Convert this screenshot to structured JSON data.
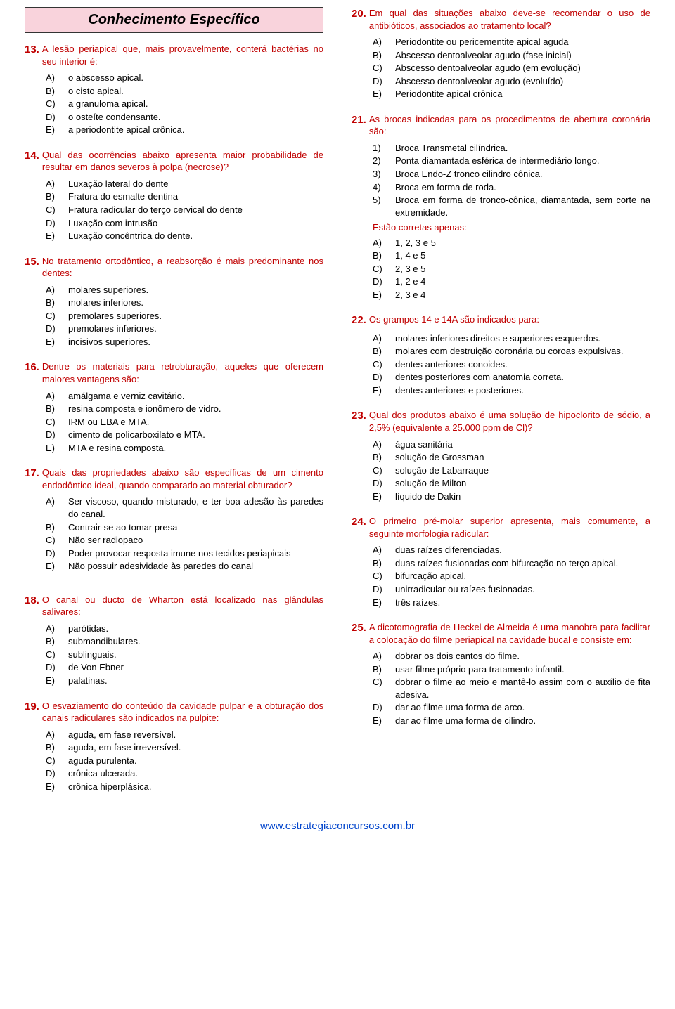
{
  "colors": {
    "question_stem": "#c00000",
    "header_bg": "#f9d3dc",
    "footer_link": "#0044cc"
  },
  "header": {
    "title": "Conhecimento Específico"
  },
  "footer": {
    "url": "www.estrategiaconcursos.com.br"
  },
  "left": [
    {
      "num": "13.",
      "text": "A lesão periapical que, mais provavelmente, conterá bactérias no seu interior é:",
      "opts": [
        {
          "l": "A)",
          "t": "o abscesso apical."
        },
        {
          "l": "B)",
          "t": "o cisto apical."
        },
        {
          "l": "C)",
          "t": "a granuloma apical."
        },
        {
          "l": "D)",
          "t": "o osteíte condensante."
        },
        {
          "l": "E)",
          "t": "a periodontite apical crônica."
        }
      ]
    },
    {
      "num": "14.",
      "text": "Qual das ocorrências abaixo apresenta maior probabilidade de resultar em danos severos à polpa (necrose)?",
      "opts": [
        {
          "l": "A)",
          "t": "Luxação lateral do dente"
        },
        {
          "l": "B)",
          "t": "Fratura do esmalte-dentina"
        },
        {
          "l": "C)",
          "t": "Fratura radicular do terço cervical do dente"
        },
        {
          "l": "D)",
          "t": "Luxação com intrusão"
        },
        {
          "l": "E)",
          "t": "Luxação concêntrica do dente."
        }
      ]
    },
    {
      "num": "15.",
      "text": "No tratamento ortodôntico, a reabsorção é mais predominante nos dentes:",
      "opts": [
        {
          "l": "A)",
          "t": "molares superiores."
        },
        {
          "l": "B)",
          "t": "molares inferiores."
        },
        {
          "l": "C)",
          "t": "premolares superiores."
        },
        {
          "l": "D)",
          "t": "premolares inferiores."
        },
        {
          "l": "E)",
          "t": "incisivos superiores."
        }
      ]
    },
    {
      "num": "16.",
      "text": "Dentre os materiais para retrobturação, aqueles que oferecem maiores vantagens são:",
      "opts": [
        {
          "l": "A)",
          "t": "amálgama e verniz cavitário."
        },
        {
          "l": "B)",
          "t": "resina composta e ionômero de vidro."
        },
        {
          "l": "C)",
          "t": "IRM ou EBA e MTA."
        },
        {
          "l": "D)",
          "t": "cimento de policarboxilato e MTA."
        },
        {
          "l": "E)",
          "t": "MTA e resina composta."
        }
      ]
    },
    {
      "num": "17.",
      "text": "Quais das propriedades abaixo são específicas de um cimento endodôntico ideal, quando comparado ao material obturador?",
      "opts": [
        {
          "l": "A)",
          "t": "Ser viscoso, quando misturado, e ter boa adesão às paredes do canal."
        },
        {
          "l": "B)",
          "t": "Contrair-se ao tomar presa"
        },
        {
          "l": "C)",
          "t": "Não ser radiopaco"
        },
        {
          "l": "D)",
          "t": "Poder provocar resposta imune nos tecidos periapicais"
        },
        {
          "l": "E)",
          "t": "Não possuir adesividade às paredes do canal"
        }
      ]
    },
    {
      "num": "18.",
      "text": "O canal ou ducto de Wharton está localizado nas glândulas salivares:",
      "gap": true,
      "opts": [
        {
          "l": "A)",
          "t": "parótidas."
        },
        {
          "l": "B)",
          "t": "submandibulares."
        },
        {
          "l": "C)",
          "t": "sublinguais."
        },
        {
          "l": "D)",
          "t": "de Von Ebner"
        },
        {
          "l": "E)",
          "t": "palatinas."
        }
      ]
    },
    {
      "num": "19.",
      "text": "O esvaziamento do conteúdo da cavidade pulpar e a obturação dos canais radiculares são indicados na pulpite:",
      "opts": [
        {
          "l": "A)",
          "t": "aguda, em fase reversível."
        },
        {
          "l": "B)",
          "t": "aguda, em fase irreversível."
        },
        {
          "l": "C)",
          "t": "aguda purulenta."
        },
        {
          "l": "D)",
          "t": "crônica ulcerada."
        },
        {
          "l": "E)",
          "t": "crônica hiperplásica."
        }
      ]
    }
  ],
  "right": [
    {
      "num": "20.",
      "text": "Em qual das situações abaixo deve-se recomendar o uso de antibióticos, associados ao tratamento local?",
      "opts": [
        {
          "l": "A)",
          "t": "Periodontite ou pericementite apical aguda"
        },
        {
          "l": "B)",
          "t": "Abscesso dentoalveolar agudo (fase inicial)"
        },
        {
          "l": "C)",
          "t": "Abscesso dentoalveolar agudo (em evolução)"
        },
        {
          "l": "D)",
          "t": "Abscesso dentoalveolar agudo (evoluído)"
        },
        {
          "l": "E)",
          "t": "Periodontite apical crônica"
        }
      ]
    },
    {
      "num": "21.",
      "text": "As brocas indicadas para os procedimentos de abertura coronária são:",
      "numbered": [
        {
          "l": "1)",
          "t": "Broca Transmetal cilíndrica."
        },
        {
          "l": "2)",
          "t": "Ponta diamantada esférica de intermediário longo."
        },
        {
          "l": "3)",
          "t": "Broca Endo-Z tronco cilindro cônica."
        },
        {
          "l": "4)",
          "t": "Broca em forma de roda."
        },
        {
          "l": "5)",
          "t": "Broca em forma de tronco-cônica, diamantada, sem corte na extremidade."
        }
      ],
      "sub": "Estão corretas apenas:",
      "opts": [
        {
          "l": "A)",
          "t": "1, 2, 3 e 5"
        },
        {
          "l": "B)",
          "t": "1, 4 e 5"
        },
        {
          "l": "C)",
          "t": "2, 3 e 5"
        },
        {
          "l": "D)",
          "t": "1, 2  e 4"
        },
        {
          "l": "E)",
          "t": "2, 3 e 4"
        }
      ]
    },
    {
      "num": "22.",
      "text": "Os grampos 14 e 14A são indicados para:",
      "opts": [
        {
          "l": "A)",
          "t": "molares inferiores direitos e superiores esquerdos."
        },
        {
          "l": "B)",
          "t": "molares com destruição coronária ou coroas expulsivas."
        },
        {
          "l": "C)",
          "t": "dentes anteriores conoides."
        },
        {
          "l": "D)",
          "t": "dentes posteriores com anatomia correta."
        },
        {
          "l": "E)",
          "t": "dentes anteriores e posteriores."
        }
      ]
    },
    {
      "num": "23.",
      "text": "Qual dos produtos abaixo é uma solução de hipoclorito de sódio, a 2,5% (equivalente a 25.000 ppm de Cl)?",
      "opts": [
        {
          "l": "A)",
          "t": "água sanitária"
        },
        {
          "l": "B)",
          "t": "solução de Grossman"
        },
        {
          "l": "C)",
          "t": "solução de Labarraque"
        },
        {
          "l": "D)",
          "t": "solução de Milton"
        },
        {
          "l": "E)",
          "t": "líquido de Dakin"
        }
      ]
    },
    {
      "num": "24.",
      "text": "O primeiro pré-molar superior apresenta, mais comumente, a seguinte morfologia radicular:",
      "opts": [
        {
          "l": "A)",
          "t": "duas raízes diferenciadas."
        },
        {
          "l": "B)",
          "t": "duas raízes fusionadas com bifurcação no terço apical."
        },
        {
          "l": "C)",
          "t": "bifurcação apical."
        },
        {
          "l": "D)",
          "t": "unirradicular ou raízes fusionadas."
        },
        {
          "l": "E)",
          "t": "três raízes."
        }
      ]
    },
    {
      "num": "25.",
      "text": "A dicotomografia de Heckel de Almeida é uma manobra para facilitar a colocação do filme periapical na cavidade bucal e consiste em:",
      "opts": [
        {
          "l": "A)",
          "t": "dobrar os dois cantos do filme."
        },
        {
          "l": "B)",
          "t": "usar filme próprio para tratamento infantil."
        },
        {
          "l": "C)",
          "t": "dobrar o filme ao meio e mantê-lo assim com o auxílio de fita adesiva."
        },
        {
          "l": "D)",
          "t": "dar ao filme uma forma de arco."
        },
        {
          "l": "E)",
          "t": "dar ao filme uma forma de cilindro."
        }
      ]
    }
  ]
}
